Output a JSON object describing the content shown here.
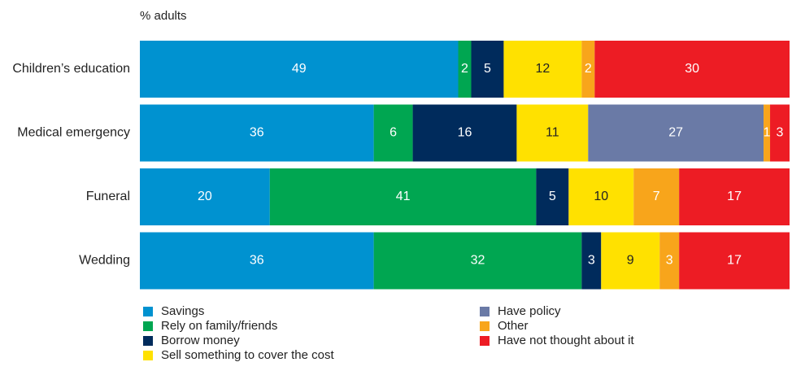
{
  "chart_data": {
    "type": "stacked-bar-horizontal",
    "subtitle": "% adults",
    "categories": [
      "Children’s education",
      "Medical emergency",
      "Funeral",
      "Wedding"
    ],
    "series": [
      {
        "name": "Savings",
        "color": "#0092d0",
        "values": [
          49,
          36,
          20,
          36
        ]
      },
      {
        "name": "Rely on family/friends",
        "color": "#00a651",
        "values": [
          2,
          6,
          41,
          32
        ]
      },
      {
        "name": "Borrow money",
        "color": "#002b5c",
        "values": [
          5,
          16,
          5,
          3
        ]
      },
      {
        "name": "Sell something to cover the cost",
        "color": "#ffe100",
        "values": [
          12,
          11,
          10,
          9
        ]
      },
      {
        "name": "Have policy",
        "color": "#6a7aa6",
        "values": [
          null,
          27,
          null,
          null
        ]
      },
      {
        "name": "Other",
        "color": "#f8a51b",
        "values": [
          2,
          1,
          7,
          3
        ]
      },
      {
        "name": "Have not thought about it",
        "color": "#ed1c24",
        "values": [
          30,
          3,
          17,
          17
        ]
      }
    ]
  }
}
